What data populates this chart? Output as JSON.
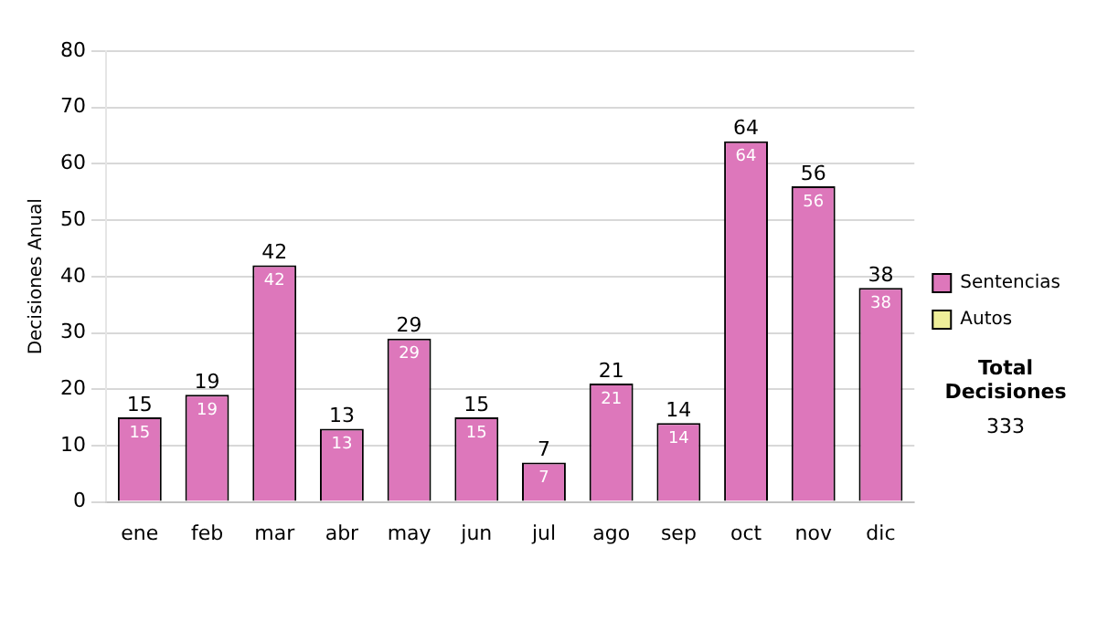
{
  "chart_data": {
    "type": "bar",
    "ylabel": "Decisiones Anual",
    "categories": [
      "ene",
      "feb",
      "mar",
      "abr",
      "may",
      "jun",
      "jul",
      "ago",
      "sep",
      "oct",
      "nov",
      "dic"
    ],
    "series": [
      {
        "name": "Sentencias",
        "color": "#dd77bb",
        "values": [
          15,
          19,
          42,
          13,
          29,
          15,
          7,
          21,
          14,
          64,
          56,
          38
        ],
        "value_labels": [
          "15",
          "19",
          "42",
          "13",
          "29",
          "15",
          "7",
          "21",
          "14",
          "64",
          "56",
          "38"
        ]
      },
      {
        "name": "Autos",
        "color": "#eeee99",
        "values": [
          0,
          0,
          0,
          0,
          0,
          0,
          0,
          0,
          0,
          0,
          0,
          0
        ],
        "value_labels": [
          null,
          null,
          null,
          null,
          null,
          null,
          null,
          null,
          null,
          null,
          null,
          null
        ]
      }
    ],
    "stacked": true,
    "totals": [
      "15",
      "19",
      "42",
      "13",
      "29",
      "15",
      "7",
      "21",
      "14",
      "64",
      "56",
      "38"
    ],
    "ylim": [
      0,
      80
    ],
    "yticks": [
      0,
      10,
      20,
      30,
      40,
      50,
      60,
      70,
      80
    ],
    "grid": "y",
    "legend": "right",
    "annotations": [
      "Total Decisiones",
      "333"
    ]
  }
}
